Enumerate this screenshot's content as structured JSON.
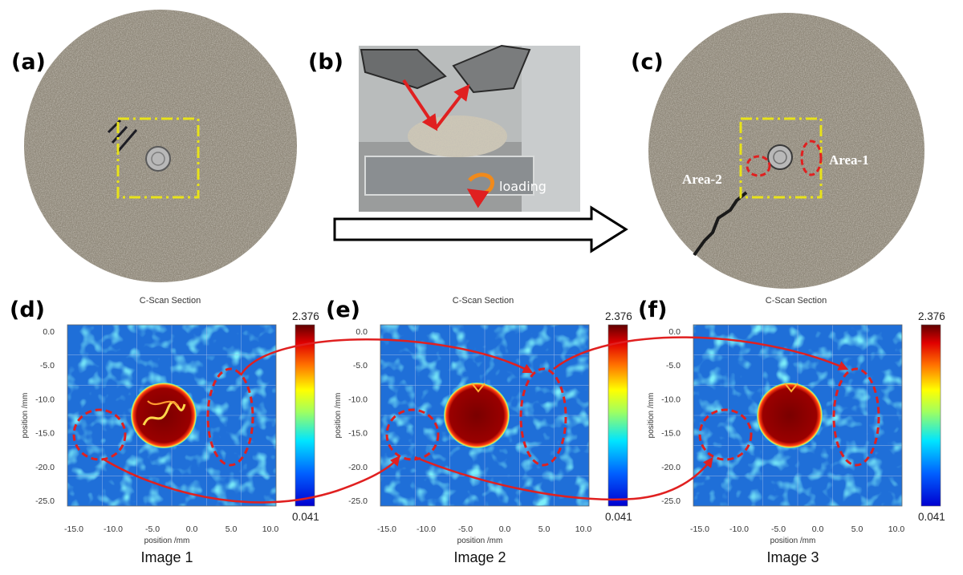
{
  "panels": {
    "a": "(a)",
    "b": "(b)",
    "c": "(c)",
    "d": "(d)",
    "e": "(e)",
    "f": "(f)"
  },
  "photo_b": {
    "loading_label": "loading"
  },
  "photo_c": {
    "area1_label": "Area-1",
    "area2_label": "Area-2"
  },
  "cscans": [
    {
      "title": "C-Scan Section",
      "caption": "Image 1",
      "cb_max": "2.376",
      "cb_min": "0.041",
      "core_variant": "cracked"
    },
    {
      "title": "C-Scan Section",
      "caption": "Image 2",
      "cb_max": "2.376",
      "cb_min": "0.041",
      "core_variant": "solid"
    },
    {
      "title": "C-Scan Section",
      "caption": "Image 3",
      "cb_max": "2.376",
      "cb_min": "0.041",
      "core_variant": "solid"
    }
  ],
  "axes": {
    "xlabel": "position /mm",
    "ylabel": "position /mm",
    "xticks": [
      "-15.0",
      "-10.0",
      "-5.0",
      "0.0",
      "5.0",
      "10.0"
    ],
    "yticks": [
      "0.0",
      "-5.0",
      "-10.0",
      "-15.0",
      "-20.0",
      "-25.0"
    ]
  },
  "colors": {
    "marker_yellow": "#e8e21a",
    "marker_red": "#e02020",
    "stone": "#8d8677",
    "cscan_bg": "#1f6fd8",
    "core": "#8a0000"
  }
}
